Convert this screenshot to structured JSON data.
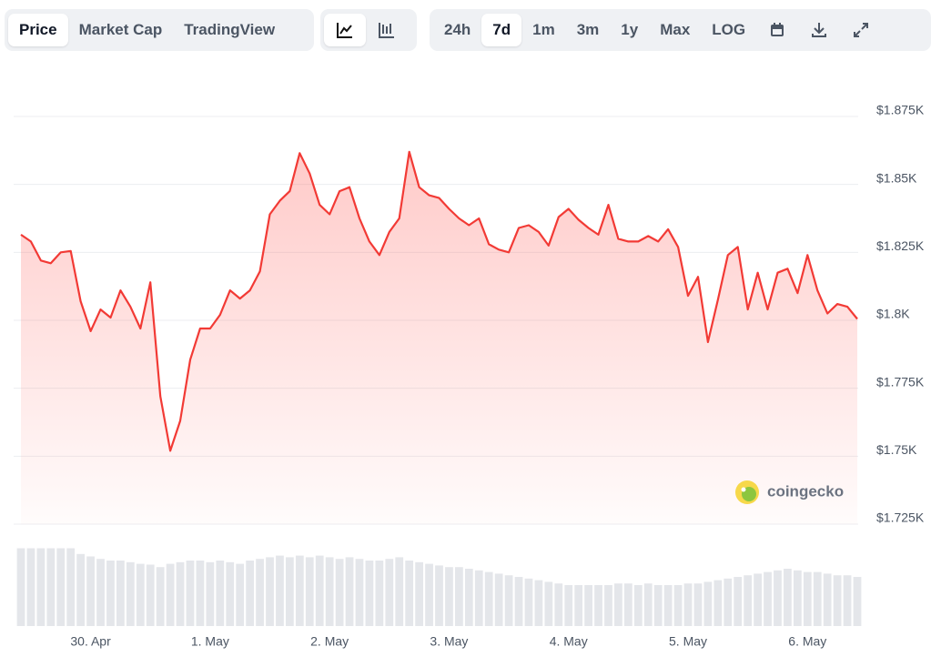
{
  "toolbar": {
    "views": [
      "Price",
      "Market Cap",
      "TradingView"
    ],
    "ranges": [
      "24h",
      "7d",
      "1m",
      "3m",
      "1y",
      "Max",
      "LOG"
    ]
  },
  "chart_data": {
    "type": "line",
    "watermark": "coingecko",
    "color": "#f23a35",
    "values": [
      1831.5,
      1829,
      1822,
      1821,
      1825,
      1825.5,
      1807,
      1796,
      1804,
      1801,
      1811,
      1805,
      1797,
      1814,
      1772,
      1752,
      1763,
      1785.5,
      1797,
      1797,
      1802,
      1811,
      1808,
      1811,
      1818,
      1839,
      1844,
      1847.5,
      1861.5,
      1854,
      1842.5,
      1839,
      1847.5,
      1849,
      1837.5,
      1829,
      1824,
      1832.5,
      1837.5,
      1862,
      1849,
      1846,
      1845,
      1841,
      1837.5,
      1835,
      1837.5,
      1828,
      1826,
      1825,
      1834,
      1835,
      1832.5,
      1827.5,
      1838,
      1841,
      1837,
      1834,
      1831.5,
      1842.5,
      1830,
      1829,
      1829,
      1831,
      1829,
      1833.5,
      1827,
      1809,
      1816,
      1792,
      1807.5,
      1824,
      1827,
      1804,
      1817.5,
      1804,
      1817.5,
      1819,
      1810,
      1824,
      1811,
      1802.5,
      1806,
      1805,
      1800.5
    ],
    "volume": {
      "color": "#e4e6ea",
      "values": [
        95,
        95,
        95,
        95,
        95,
        95,
        88,
        85,
        82,
        80,
        80,
        78,
        76,
        75,
        72,
        76,
        78,
        80,
        80,
        78,
        80,
        78,
        76,
        80,
        82,
        84,
        86,
        84,
        86,
        84,
        86,
        84,
        82,
        84,
        82,
        80,
        80,
        82,
        84,
        80,
        78,
        76,
        74,
        72,
        72,
        70,
        68,
        66,
        64,
        62,
        60,
        58,
        56,
        54,
        52,
        50,
        50,
        50,
        50,
        50,
        52,
        52,
        50,
        52,
        50,
        50,
        50,
        52,
        52,
        54,
        56,
        58,
        60,
        62,
        64,
        66,
        68,
        70,
        68,
        66,
        66,
        64,
        62,
        62,
        60
      ],
      "ylim": [
        0,
        100
      ]
    },
    "xlim": [
      0,
      84
    ],
    "xticks": [
      {
        "value": 7,
        "label": "30. Apr"
      },
      {
        "value": 19,
        "label": "1. May"
      },
      {
        "value": 31,
        "label": "2. May"
      },
      {
        "value": 43,
        "label": "3. May"
      },
      {
        "value": 55,
        "label": "4. May"
      },
      {
        "value": 67,
        "label": "5. May"
      },
      {
        "value": 79,
        "label": "6. May"
      }
    ],
    "ylim": [
      1725,
      1875
    ],
    "yticks": [
      {
        "value": 1725,
        "label": "$1.725K"
      },
      {
        "value": 1750,
        "label": "$1.75K"
      },
      {
        "value": 1775,
        "label": "$1.775K"
      },
      {
        "value": 1800,
        "label": "$1.8K"
      },
      {
        "value": 1825,
        "label": "$1.825K"
      },
      {
        "value": 1850,
        "label": "$1.85K"
      },
      {
        "value": 1875,
        "label": "$1.875K"
      }
    ],
    "grid": true
  }
}
